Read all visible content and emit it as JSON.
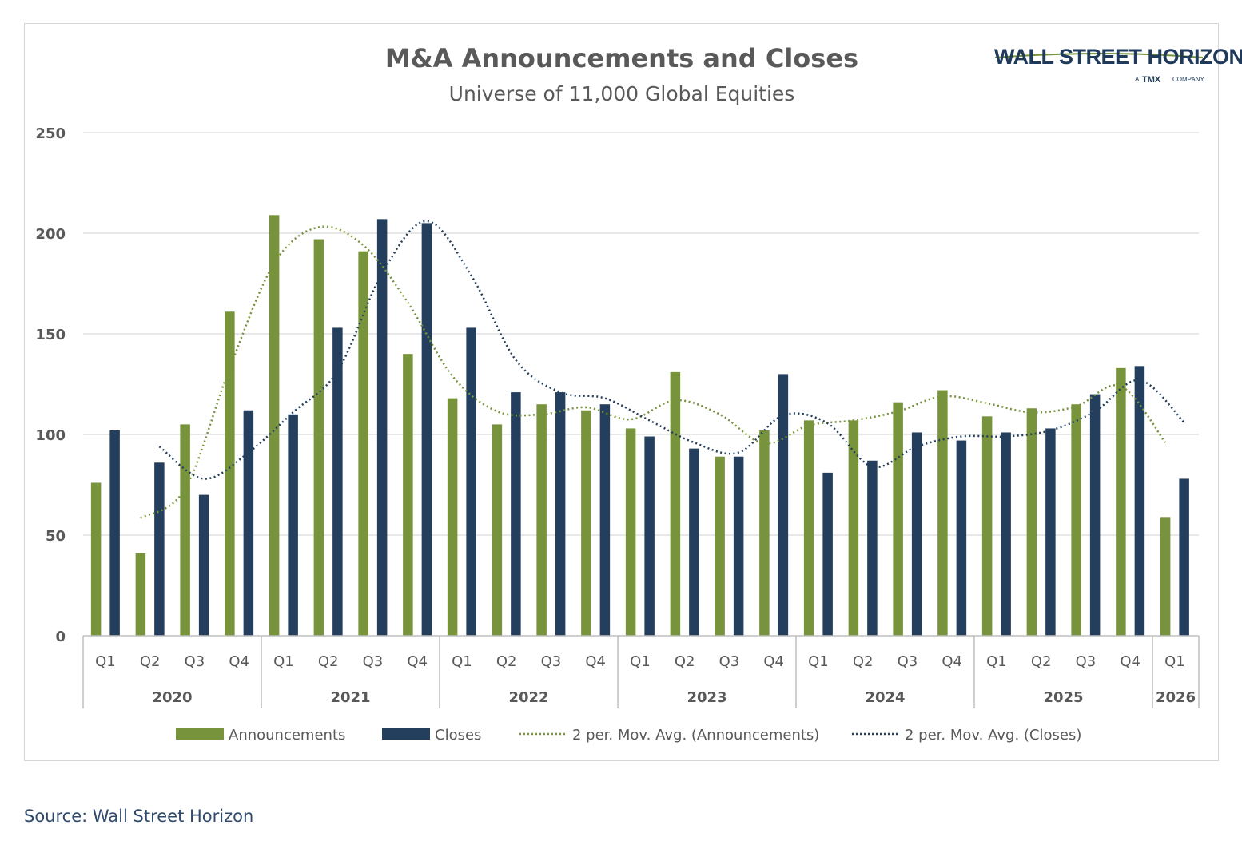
{
  "source_label": "Source: Wall Street Horizon",
  "logo": {
    "main": "WALL STREET HORIZON",
    "prefix": "A",
    "tmx": "TMX",
    "suffix": "COMPANY"
  },
  "colors": {
    "announcements": "#77933c",
    "closes": "#243f5d",
    "grid": "#d9d9d9",
    "text": "#595959"
  },
  "chart_data": {
    "type": "bar",
    "title": "M&A Announcements and Closes",
    "subtitle": "Universe of 11,000 Global Equities",
    "ylim": [
      0,
      250
    ],
    "yticks": [
      0,
      50,
      100,
      150,
      200,
      250
    ],
    "grid": true,
    "legend_position": "bottom",
    "groups": [
      {
        "year": "2020",
        "quarters": [
          "Q1",
          "Q2",
          "Q3",
          "Q4"
        ]
      },
      {
        "year": "2021",
        "quarters": [
          "Q1",
          "Q2",
          "Q3",
          "Q4"
        ]
      },
      {
        "year": "2022",
        "quarters": [
          "Q1",
          "Q2",
          "Q3",
          "Q4"
        ]
      },
      {
        "year": "2023",
        "quarters": [
          "Q1",
          "Q2",
          "Q3",
          "Q4"
        ]
      },
      {
        "year": "2024",
        "quarters": [
          "Q1",
          "Q2",
          "Q3",
          "Q4"
        ]
      },
      {
        "year": "2025",
        "quarters": [
          "Q1",
          "Q2",
          "Q3",
          "Q4"
        ]
      },
      {
        "year": "2026",
        "quarters": [
          "Q1"
        ]
      }
    ],
    "series": [
      {
        "name": "Announcements",
        "kind": "bar",
        "values": [
          76,
          41,
          105,
          161,
          209,
          197,
          191,
          140,
          118,
          105,
          115,
          112,
          103,
          131,
          89,
          102,
          107,
          107,
          116,
          122,
          109,
          113,
          115,
          133,
          59
        ]
      },
      {
        "name": "Closes",
        "kind": "bar",
        "values": [
          102,
          86,
          70,
          112,
          110,
          153,
          207,
          205,
          153,
          121,
          121,
          115,
          99,
          93,
          89,
          130,
          81,
          87,
          101,
          97,
          101,
          103,
          120,
          134,
          78
        ]
      },
      {
        "name": "2 per. Mov. Avg. (Announcements)",
        "kind": "dotted-line"
      },
      {
        "name": "2 per. Mov. Avg. (Closes)",
        "kind": "dotted-line"
      }
    ]
  }
}
